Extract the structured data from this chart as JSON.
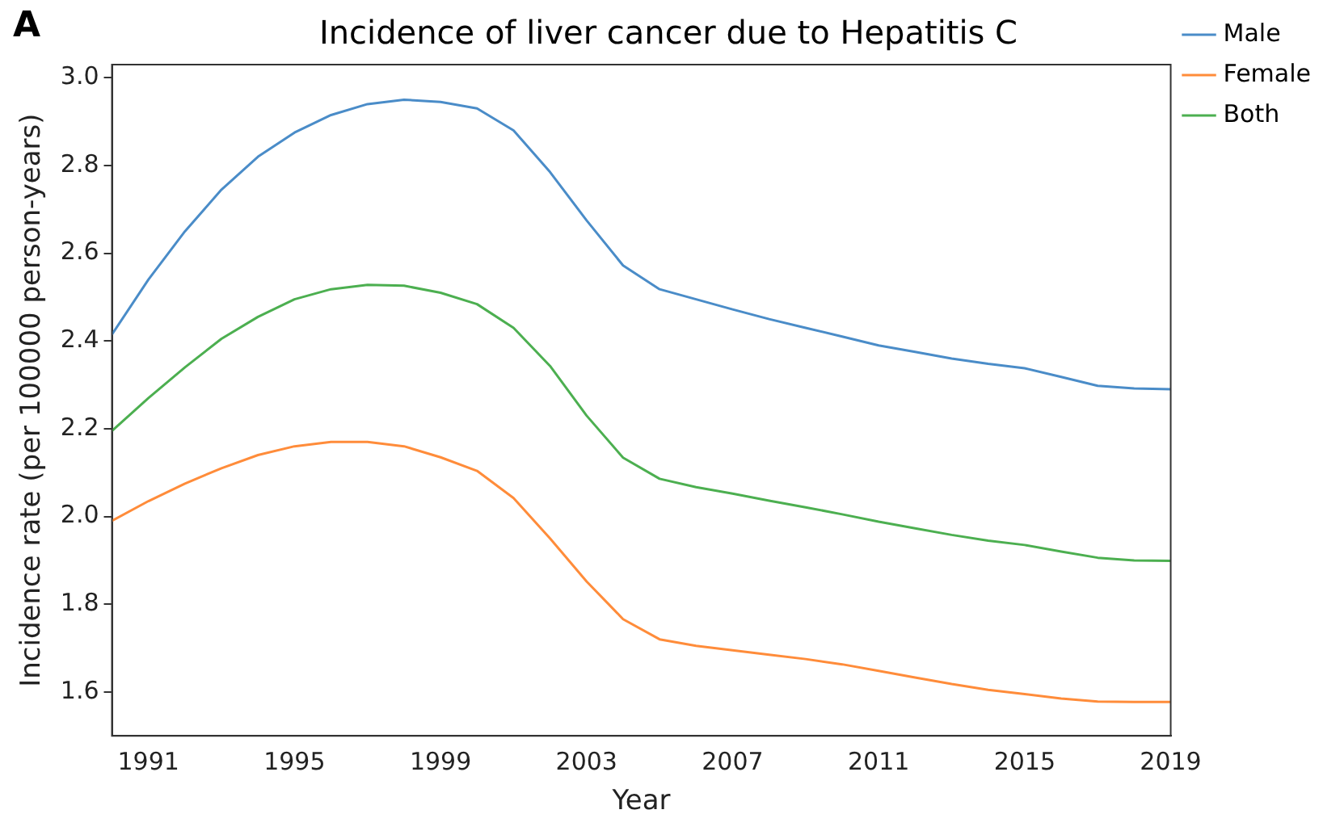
{
  "chart_data": {
    "type": "line",
    "title": "Incidence of liver cancer due to Hepatitis C",
    "xlabel": "Year",
    "ylabel": "Incidence rate (per 100000 person-years)",
    "annotations": [
      "A"
    ],
    "x": [
      1990,
      1991,
      1992,
      1993,
      1994,
      1995,
      1996,
      1997,
      1998,
      1999,
      2000,
      2001,
      2002,
      2003,
      2004,
      2005,
      2006,
      2007,
      2008,
      2009,
      2010,
      2011,
      2012,
      2013,
      2014,
      2015,
      2016,
      2017,
      2018,
      2019
    ],
    "series": [
      {
        "name": "Male",
        "color": "#4a8cc8",
        "values": [
          2.415,
          2.54,
          2.65,
          2.745,
          2.82,
          2.875,
          2.915,
          2.94,
          2.95,
          2.945,
          2.93,
          2.88,
          2.785,
          2.675,
          2.572,
          2.518,
          2.495,
          2.472,
          2.45,
          2.43,
          2.41,
          2.39,
          2.375,
          2.36,
          2.348,
          2.338,
          2.318,
          2.298,
          2.292,
          2.29
        ]
      },
      {
        "name": "Female",
        "color": "#ff8c3a",
        "values": [
          1.99,
          2.035,
          2.075,
          2.11,
          2.14,
          2.16,
          2.17,
          2.17,
          2.16,
          2.135,
          2.104,
          2.042,
          1.95,
          1.852,
          1.766,
          1.72,
          1.705,
          1.695,
          1.685,
          1.675,
          1.663,
          1.648,
          1.633,
          1.618,
          1.605,
          1.595,
          1.585,
          1.578,
          1.577,
          1.577
        ]
      },
      {
        "name": "Both",
        "color": "#4caf50",
        "values": [
          2.195,
          2.27,
          2.34,
          2.405,
          2.455,
          2.495,
          2.518,
          2.528,
          2.526,
          2.51,
          2.484,
          2.43,
          2.343,
          2.23,
          2.134,
          2.086,
          2.067,
          2.052,
          2.036,
          2.021,
          2.005,
          1.988,
          1.973,
          1.958,
          1.945,
          1.935,
          1.92,
          1.906,
          1.9,
          1.899
        ]
      }
    ],
    "xlim": [
      1990,
      2019
    ],
    "xticks": [
      1991,
      1995,
      1999,
      2003,
      2007,
      2011,
      2015,
      2019
    ],
    "ylim": [
      1.5,
      3.03
    ],
    "yticks": [
      1.6,
      1.8,
      {
        "value": 2,
        "label": "2.0"
      },
      2.2,
      2.4,
      2.6,
      2.8,
      {
        "value": 3,
        "label": "3.0"
      }
    ],
    "grid": false,
    "legend": "top right",
    "marker": "none",
    "line_style": "solid"
  }
}
